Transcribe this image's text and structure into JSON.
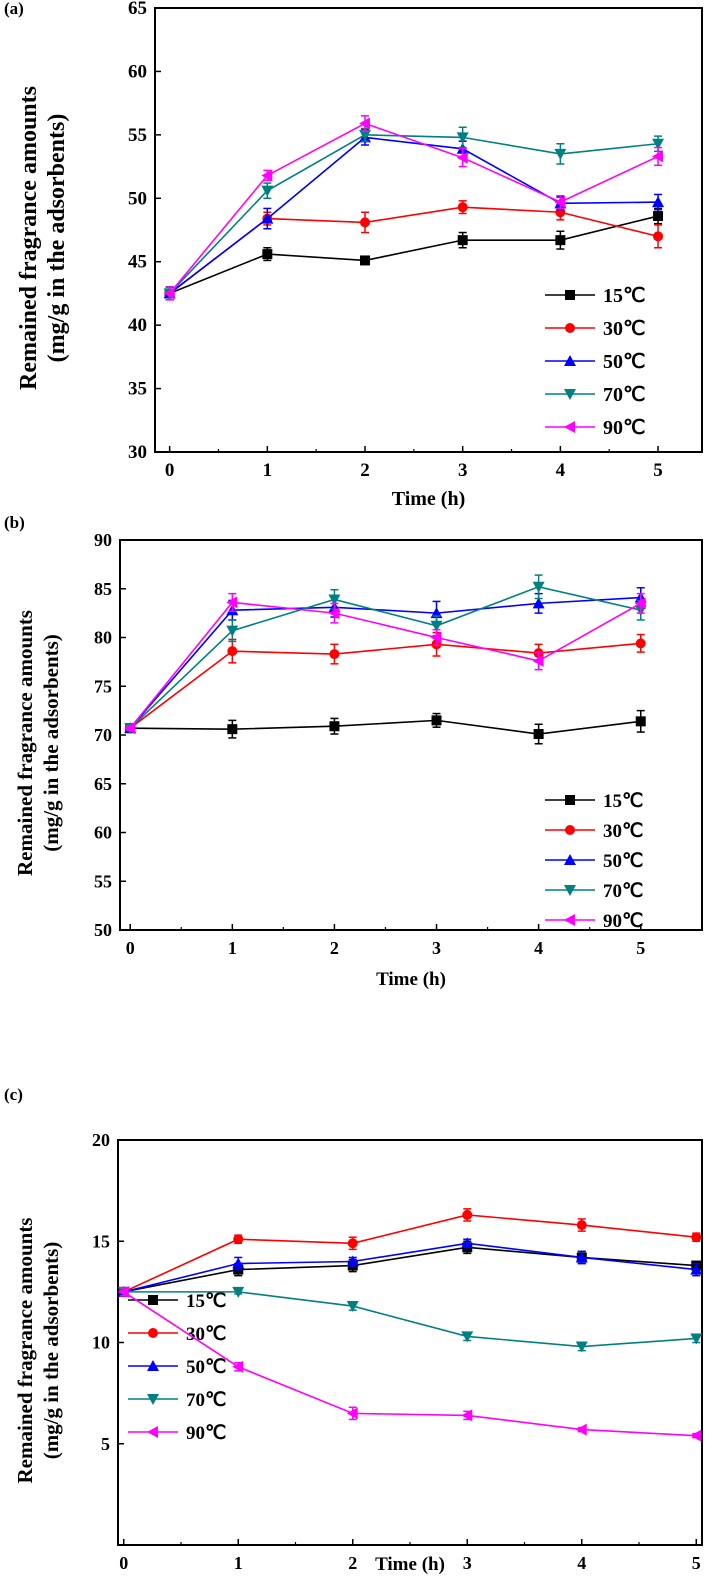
{
  "chart_data": [
    {
      "type": "line",
      "panel_label": "(a)",
      "xlabel": "Time (h)",
      "ylabel": [
        "Remained fragrance amounts",
        "(mg/g in the adsorbents)"
      ],
      "x": [
        0,
        1,
        2,
        3,
        4,
        5
      ],
      "xlim": [
        -0.15,
        5.45
      ],
      "ylim": [
        30,
        65
      ],
      "yticks": [
        30,
        35,
        40,
        45,
        50,
        55,
        60,
        65
      ],
      "legend_position": "bottom-right",
      "series": [
        {
          "name": "15℃",
          "color": "#000000",
          "marker": "square",
          "values": [
            42.5,
            45.6,
            45.1,
            46.7,
            46.7,
            48.6
          ],
          "err": [
            0.5,
            0.5,
            0.3,
            0.6,
            0.7,
            0.6
          ]
        },
        {
          "name": "30℃",
          "color": "#ff0000",
          "marker": "circle",
          "values": [
            42.5,
            48.4,
            48.1,
            49.3,
            48.9,
            47.0
          ],
          "err": [
            0.5,
            0.5,
            0.8,
            0.5,
            0.6,
            0.9
          ]
        },
        {
          "name": "50℃",
          "color": "#0000ff",
          "marker": "triangle-up",
          "values": [
            42.5,
            48.4,
            54.8,
            53.9,
            49.6,
            49.7
          ],
          "err": [
            0.5,
            0.8,
            0.6,
            0.6,
            0.5,
            0.6
          ]
        },
        {
          "name": "70℃",
          "color": "#008080",
          "marker": "triangle-down",
          "values": [
            42.5,
            50.6,
            55.0,
            54.8,
            53.5,
            54.3
          ],
          "err": [
            0.5,
            0.6,
            0.5,
            0.8,
            0.8,
            0.6
          ]
        },
        {
          "name": "90℃",
          "color": "#ff00ff",
          "marker": "triangle-left",
          "values": [
            42.5,
            51.8,
            55.9,
            53.2,
            49.7,
            53.3
          ],
          "err": [
            0.5,
            0.4,
            0.6,
            0.7,
            0.5,
            0.7
          ]
        }
      ]
    },
    {
      "type": "line",
      "panel_label": "(b)",
      "xlabel": "Time (h)",
      "ylabel": [
        "Remained fragrance amounts",
        "(mg/g in the adsorbents)"
      ],
      "x": [
        0,
        1,
        2,
        3,
        4,
        5
      ],
      "xlim": [
        -0.1,
        5.6
      ],
      "ylim": [
        50,
        90
      ],
      "yticks": [
        50,
        55,
        60,
        65,
        70,
        75,
        80,
        85,
        90
      ],
      "legend_position": "bottom-right",
      "series": [
        {
          "name": "15℃",
          "color": "#000000",
          "marker": "square",
          "values": [
            70.7,
            70.6,
            70.9,
            71.5,
            70.1,
            71.4
          ],
          "err": [
            0.2,
            0.9,
            0.8,
            0.7,
            1.0,
            1.1
          ]
        },
        {
          "name": "30℃",
          "color": "#ff0000",
          "marker": "circle",
          "values": [
            70.7,
            78.6,
            78.3,
            79.3,
            78.4,
            79.4
          ],
          "err": [
            0.2,
            1.2,
            1.0,
            1.2,
            0.9,
            0.9
          ]
        },
        {
          "name": "50℃",
          "color": "#0000ff",
          "marker": "triangle-up",
          "values": [
            70.7,
            82.8,
            83.1,
            82.5,
            83.5,
            84.1
          ],
          "err": [
            0.2,
            1.0,
            1.0,
            1.2,
            1.0,
            1.0
          ]
        },
        {
          "name": "70℃",
          "color": "#008080",
          "marker": "triangle-down",
          "values": [
            70.7,
            80.7,
            83.9,
            81.2,
            85.2,
            82.8
          ],
          "err": [
            0.2,
            1.1,
            1.0,
            1.0,
            1.2,
            1.0
          ]
        },
        {
          "name": "90℃",
          "color": "#ff00ff",
          "marker": "triangle-left",
          "values": [
            70.7,
            83.6,
            82.5,
            80.0,
            77.6,
            83.5
          ],
          "err": [
            0.2,
            0.9,
            1.0,
            0.8,
            0.9,
            1.0
          ]
        }
      ]
    },
    {
      "type": "line",
      "panel_label": "(c)",
      "xlabel": "Time (h)",
      "ylabel": [
        "Remained fragrance amounts",
        "(mg/g in the adsorbents)"
      ],
      "x": [
        0,
        1,
        2,
        3,
        4,
        5
      ],
      "xlim": [
        -0.05,
        5.05
      ],
      "ylim": [
        0,
        20
      ],
      "yticks": [
        5,
        10,
        15,
        20
      ],
      "legend_position": "bottom-left",
      "series": [
        {
          "name": "15℃",
          "color": "#000000",
          "marker": "square",
          "values": [
            12.5,
            13.6,
            13.8,
            14.7,
            14.2,
            13.8
          ],
          "err": [
            0.2,
            0.3,
            0.3,
            0.3,
            0.3,
            0.2
          ]
        },
        {
          "name": "30℃",
          "color": "#ff0000",
          "marker": "circle",
          "values": [
            12.5,
            15.1,
            14.9,
            16.3,
            15.8,
            15.2
          ],
          "err": [
            0.2,
            0.2,
            0.3,
            0.3,
            0.3,
            0.2
          ]
        },
        {
          "name": "50℃",
          "color": "#0000ff",
          "marker": "triangle-up",
          "values": [
            12.5,
            13.9,
            14.0,
            14.9,
            14.2,
            13.6
          ],
          "err": [
            0.2,
            0.3,
            0.2,
            0.2,
            0.3,
            0.3
          ]
        },
        {
          "name": "70℃",
          "color": "#008080",
          "marker": "triangle-down",
          "values": [
            12.5,
            12.5,
            11.8,
            10.3,
            9.8,
            10.2
          ],
          "err": [
            0.2,
            0.1,
            0.2,
            0.2,
            0.2,
            0.2
          ]
        },
        {
          "name": "90℃",
          "color": "#ff00ff",
          "marker": "triangle-left",
          "values": [
            12.5,
            8.8,
            6.5,
            6.4,
            5.7,
            5.4
          ],
          "err": [
            0.2,
            0.2,
            0.3,
            0.2,
            0.1,
            0.1
          ]
        }
      ]
    }
  ]
}
